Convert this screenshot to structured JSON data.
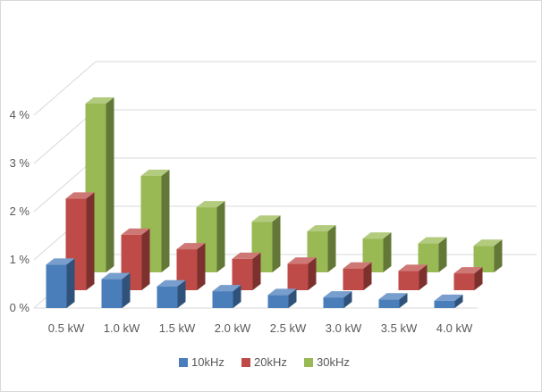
{
  "chart_data": {
    "type": "bar",
    "subtype": "3d-clustered-depth",
    "categories": [
      "0.5 kW",
      "1.0 kW",
      "1.5 kW",
      "2.0 kW",
      "2.5 kW",
      "3.0 kW",
      "3.5 kW",
      "4.0 kW"
    ],
    "series": [
      {
        "name": "10kHz",
        "color": "#4a7ebb",
        "values": [
          0.9,
          0.6,
          0.45,
          0.35,
          0.27,
          0.22,
          0.18,
          0.15
        ]
      },
      {
        "name": "20kHz",
        "color": "#be4b48",
        "values": [
          1.9,
          1.15,
          0.85,
          0.65,
          0.55,
          0.45,
          0.4,
          0.35
        ]
      },
      {
        "name": "30kHz",
        "color": "#98b954",
        "values": [
          3.5,
          2.0,
          1.35,
          1.05,
          0.85,
          0.7,
          0.6,
          0.55
        ]
      }
    ],
    "y_ticks": [
      "0 %",
      "1 %",
      "2 %",
      "3 %",
      "4 %"
    ],
    "ylim": [
      0,
      4
    ],
    "grid": true,
    "legend_position": "bottom"
  }
}
